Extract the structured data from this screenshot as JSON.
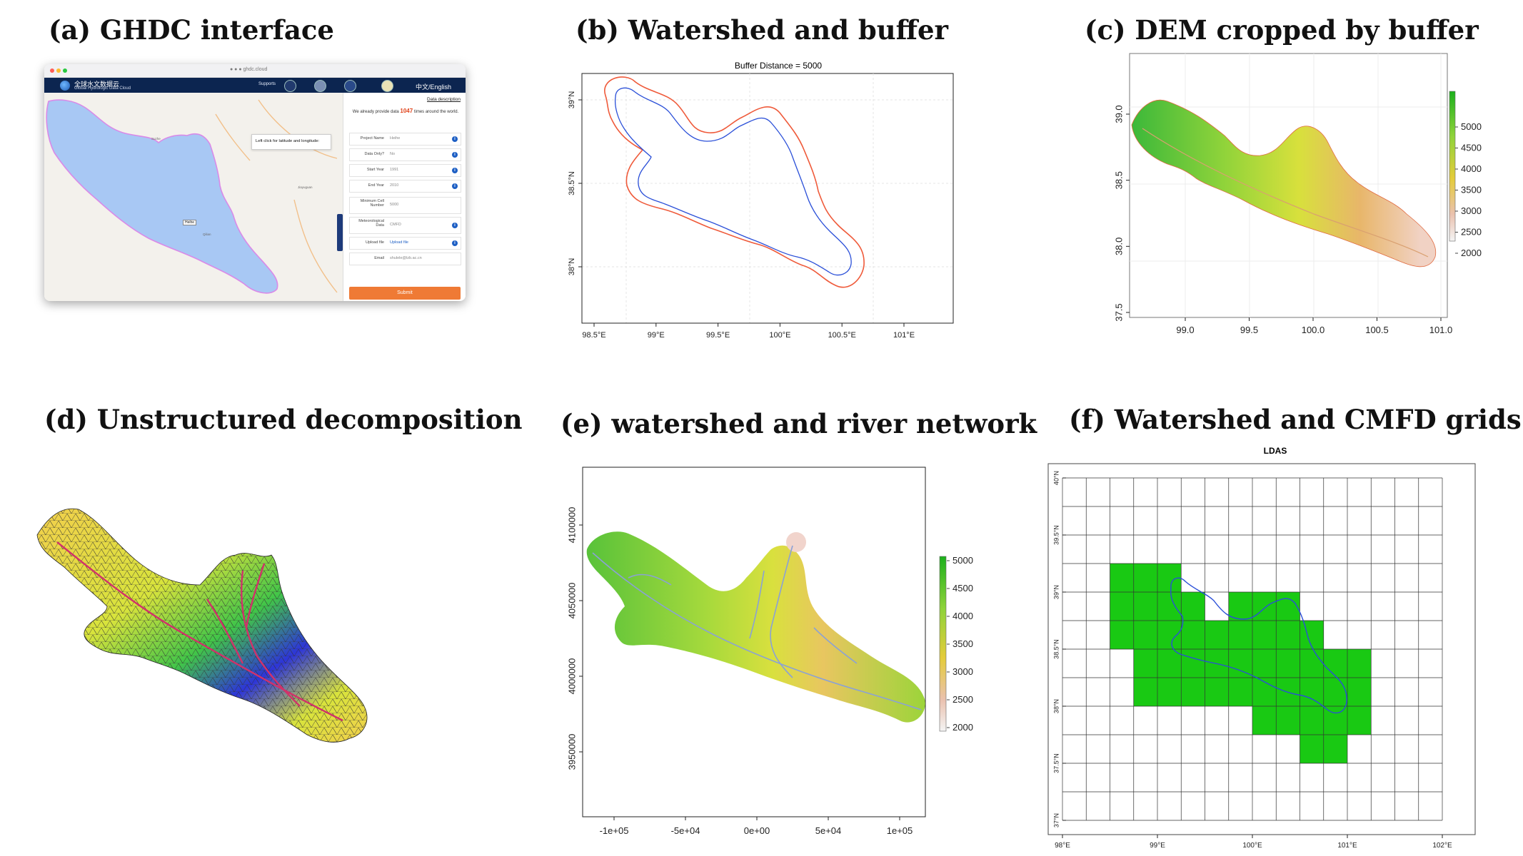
{
  "titles": {
    "a": "(a) GHDC  interface",
    "b": "(b) Watershed and buffer",
    "c": "(c) DEM cropped by buffer",
    "d": "(d) Unstructured decomposition",
    "e": "(e) watershed and river network",
    "f": "(f) Watershed and CMFD grids"
  },
  "ghdc": {
    "brand_cn": "全球水文数据云",
    "brand_en": "Global Hydrologic Data Cloud",
    "supports": "Supports",
    "language": "中文/English",
    "url": "● ● ●  ghdc.cloud",
    "data_description": "Data description",
    "tooltip": "Left click for latitude and longitude:",
    "note_prefix": "We already provide data",
    "note_count": "1047",
    "note_suffix": "times around the world.",
    "fields": [
      {
        "label": "Project Name",
        "value": "Heihe"
      },
      {
        "label": "Data Only?",
        "value": "No"
      },
      {
        "label": "Start Year",
        "value": "1991"
      },
      {
        "label": "End Year",
        "value": "2010"
      },
      {
        "label": "Minimum Cell Number",
        "value": "5000"
      },
      {
        "label": "Meteorological Data",
        "value": "CMFD"
      },
      {
        "label": "Upload file",
        "value": "Upload file"
      },
      {
        "label": "Email",
        "value": "shulele@lzb.ac.cn"
      }
    ],
    "submit": "Submit",
    "pin_label": "Heihe",
    "map_labels": [
      "Suzhe",
      "Qilian",
      "Jiayuguan"
    ]
  },
  "chart_b": {
    "title": "Buffer Distance = 5000",
    "x_ticks": [
      "98.5°E",
      "99°E",
      "99.5°E",
      "100°E",
      "100.5°E",
      "101°E"
    ],
    "y_ticks": [
      "38°N",
      "38.5°N",
      "39°N"
    ],
    "colors": {
      "watershed": "#2a4fd8",
      "buffer": "#ef5a3a"
    }
  },
  "chart_c": {
    "x_ticks": [
      "99.0",
      "99.5",
      "100.0",
      "100.5",
      "101.0"
    ],
    "y_ticks": [
      "37.5",
      "38.0",
      "38.5",
      "39.0"
    ],
    "legend": [
      "5000",
      "4500",
      "4000",
      "3500",
      "3000",
      "2500",
      "2000"
    ]
  },
  "chart_e": {
    "x_ticks": [
      "-1e+05",
      "-5e+04",
      "0e+00",
      "5e+04",
      "1e+05"
    ],
    "y_ticks": [
      "3950000",
      "4000000",
      "4050000",
      "4100000"
    ],
    "legend": [
      "5000",
      "4500",
      "4000",
      "3500",
      "3000",
      "2500",
      "2000"
    ]
  },
  "chart_f": {
    "title": "LDAS",
    "x_ticks": [
      "98°E",
      "99°E",
      "100°E",
      "101°E",
      "102°E"
    ],
    "y_ticks": [
      "37°N",
      "37.5°N",
      "38°N",
      "38.5°N",
      "39°N",
      "39.5°N",
      "40°N"
    ],
    "cell_color": "#19c913"
  },
  "chart_data": [
    {
      "type": "map",
      "panel": "b",
      "title": "Buffer Distance = 5000",
      "xlim": [
        98.45,
        101.45
      ],
      "ylim": [
        37.75,
        39.25
      ]
    },
    {
      "type": "heatmap",
      "panel": "c",
      "xlim": [
        98.6,
        101.2
      ],
      "ylim": [
        37.3,
        39.45
      ],
      "legend_values": [
        5000,
        4500,
        4000,
        3500,
        3000,
        2500,
        2000
      ]
    },
    {
      "type": "heatmap",
      "panel": "e",
      "xlim": [
        -120000,
        120000
      ],
      "ylim": [
        3910000,
        4125000
      ],
      "legend_values": [
        5000,
        4500,
        4000,
        3500,
        3000,
        2500,
        2000
      ]
    },
    {
      "type": "map",
      "panel": "f",
      "title": "LDAS",
      "xlim": [
        98,
        102
      ],
      "ylim": [
        37,
        40
      ],
      "grid_step": 0.25,
      "cells_lon_lat": [
        [
          98.5,
          39.0
        ],
        [
          98.75,
          39.0
        ],
        [
          99.0,
          39.0
        ],
        [
          98.5,
          38.75
        ],
        [
          98.75,
          38.75
        ],
        [
          99.0,
          38.75
        ],
        [
          99.25,
          38.75
        ],
        [
          99.75,
          38.75
        ],
        [
          100.0,
          38.75
        ],
        [
          100.25,
          38.75
        ],
        [
          98.5,
          38.5
        ],
        [
          98.75,
          38.5
        ],
        [
          99.0,
          38.5
        ],
        [
          99.25,
          38.5
        ],
        [
          99.5,
          38.5
        ],
        [
          99.75,
          38.5
        ],
        [
          100.0,
          38.5
        ],
        [
          100.25,
          38.5
        ],
        [
          100.5,
          38.5
        ],
        [
          98.75,
          38.25
        ],
        [
          99.0,
          38.25
        ],
        [
          99.25,
          38.25
        ],
        [
          99.5,
          38.25
        ],
        [
          99.75,
          38.25
        ],
        [
          100.0,
          38.25
        ],
        [
          100.25,
          38.25
        ],
        [
          100.5,
          38.25
        ],
        [
          100.75,
          38.25
        ],
        [
          101.0,
          38.25
        ],
        [
          98.75,
          38.0
        ],
        [
          99.0,
          38.0
        ],
        [
          99.25,
          38.0
        ],
        [
          99.5,
          38.0
        ],
        [
          99.75,
          38.0
        ],
        [
          100.0,
          38.0
        ],
        [
          100.25,
          38.0
        ],
        [
          100.5,
          38.0
        ],
        [
          100.75,
          38.0
        ],
        [
          101.0,
          38.0
        ],
        [
          100.0,
          37.75
        ],
        [
          100.25,
          37.75
        ],
        [
          100.5,
          37.75
        ],
        [
          100.75,
          37.75
        ],
        [
          101.0,
          37.75
        ],
        [
          100.5,
          37.5
        ],
        [
          100.75,
          37.5
        ]
      ]
    }
  ]
}
